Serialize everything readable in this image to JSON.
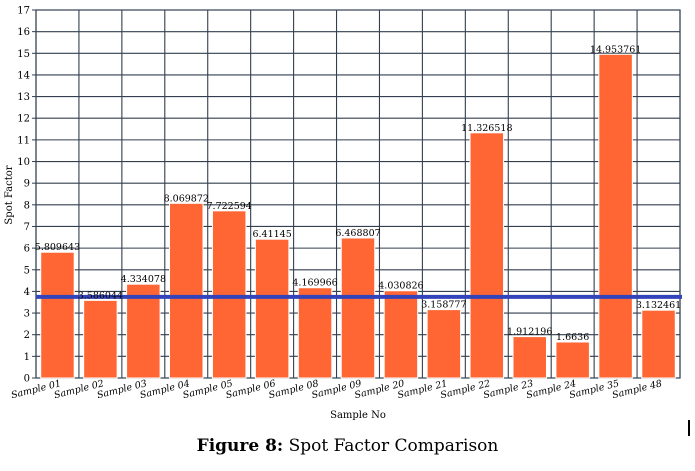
{
  "chart_data": {
    "type": "bar",
    "title": "",
    "xlabel": "Sample No",
    "ylabel": "Spot Factor",
    "ylim": [
      0,
      17
    ],
    "yticks": [
      "0",
      "1",
      "2",
      "3",
      "4",
      "5",
      "6",
      "7",
      "8",
      "9",
      "10",
      "11",
      "12",
      "13",
      "14",
      "15",
      "16",
      "17"
    ],
    "grid": true,
    "categories": [
      "Sample 01",
      "Sample 02",
      "Sample 03",
      "Sample 04",
      "Sample 05",
      "Sample 06",
      "Sample 08",
      "Sample 09",
      "Sample 20",
      "Sample 21",
      "Sample 22",
      "Sample 23",
      "Sample 24",
      "Sample 35",
      "Sample 48"
    ],
    "values": [
      5.809643,
      3.586044,
      4.334078,
      8.069872,
      7.722594,
      6.41145,
      4.169966,
      6.468807,
      4.030826,
      3.158777,
      11.326518,
      1.912196,
      1.6636,
      14.953761,
      3.132461
    ],
    "labels": [
      "5.809643",
      "3.586044",
      "4.334078",
      "8.069872",
      "7.722594",
      "6.41145",
      "4.169966",
      "6.468807",
      "4.030826",
      "3.158777",
      "11.326518",
      "1.912196",
      "1.6636",
      "14.953761",
      "3.132461"
    ],
    "reference_line": 3.75,
    "colors": {
      "bar": "#ff6633",
      "bar_stroke": "#ffffff",
      "grid": "#333f4f",
      "reference": "#3344bb"
    }
  },
  "caption": {
    "label": "Figure 8:",
    "text": "Spot Factor Comparison"
  }
}
